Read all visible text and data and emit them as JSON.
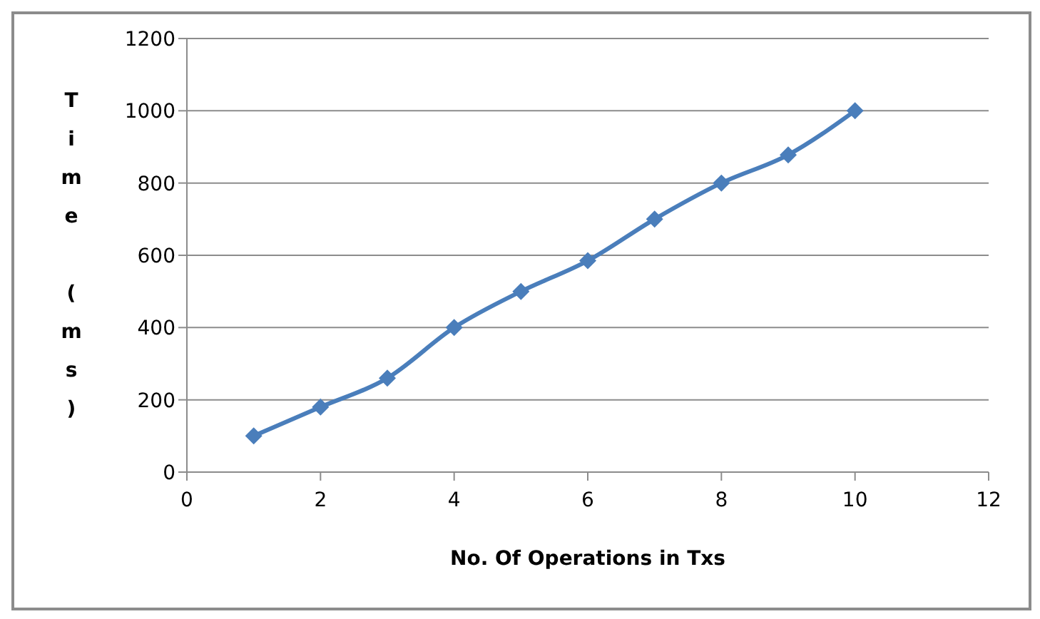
{
  "chart_data": {
    "type": "line",
    "xlabel": "No. Of Operations in Txs",
    "ylabel": "Time (ms)",
    "x": [
      1,
      2,
      3,
      4,
      5,
      6,
      7,
      8,
      9,
      10
    ],
    "series": [
      {
        "color": "#4a7ebb",
        "values": [
          100,
          180,
          260,
          400,
          500,
          585,
          700,
          800,
          878,
          1000
        ]
      }
    ],
    "xlim": [
      0,
      12
    ],
    "xticks": [
      0,
      2,
      4,
      6,
      8,
      10,
      12
    ],
    "ylim": [
      0,
      1200
    ],
    "yticks": [
      0,
      200,
      400,
      600,
      800,
      1000,
      1200
    ],
    "grid": "y",
    "marker": "diamond",
    "line_style": "solid",
    "legend": false
  }
}
